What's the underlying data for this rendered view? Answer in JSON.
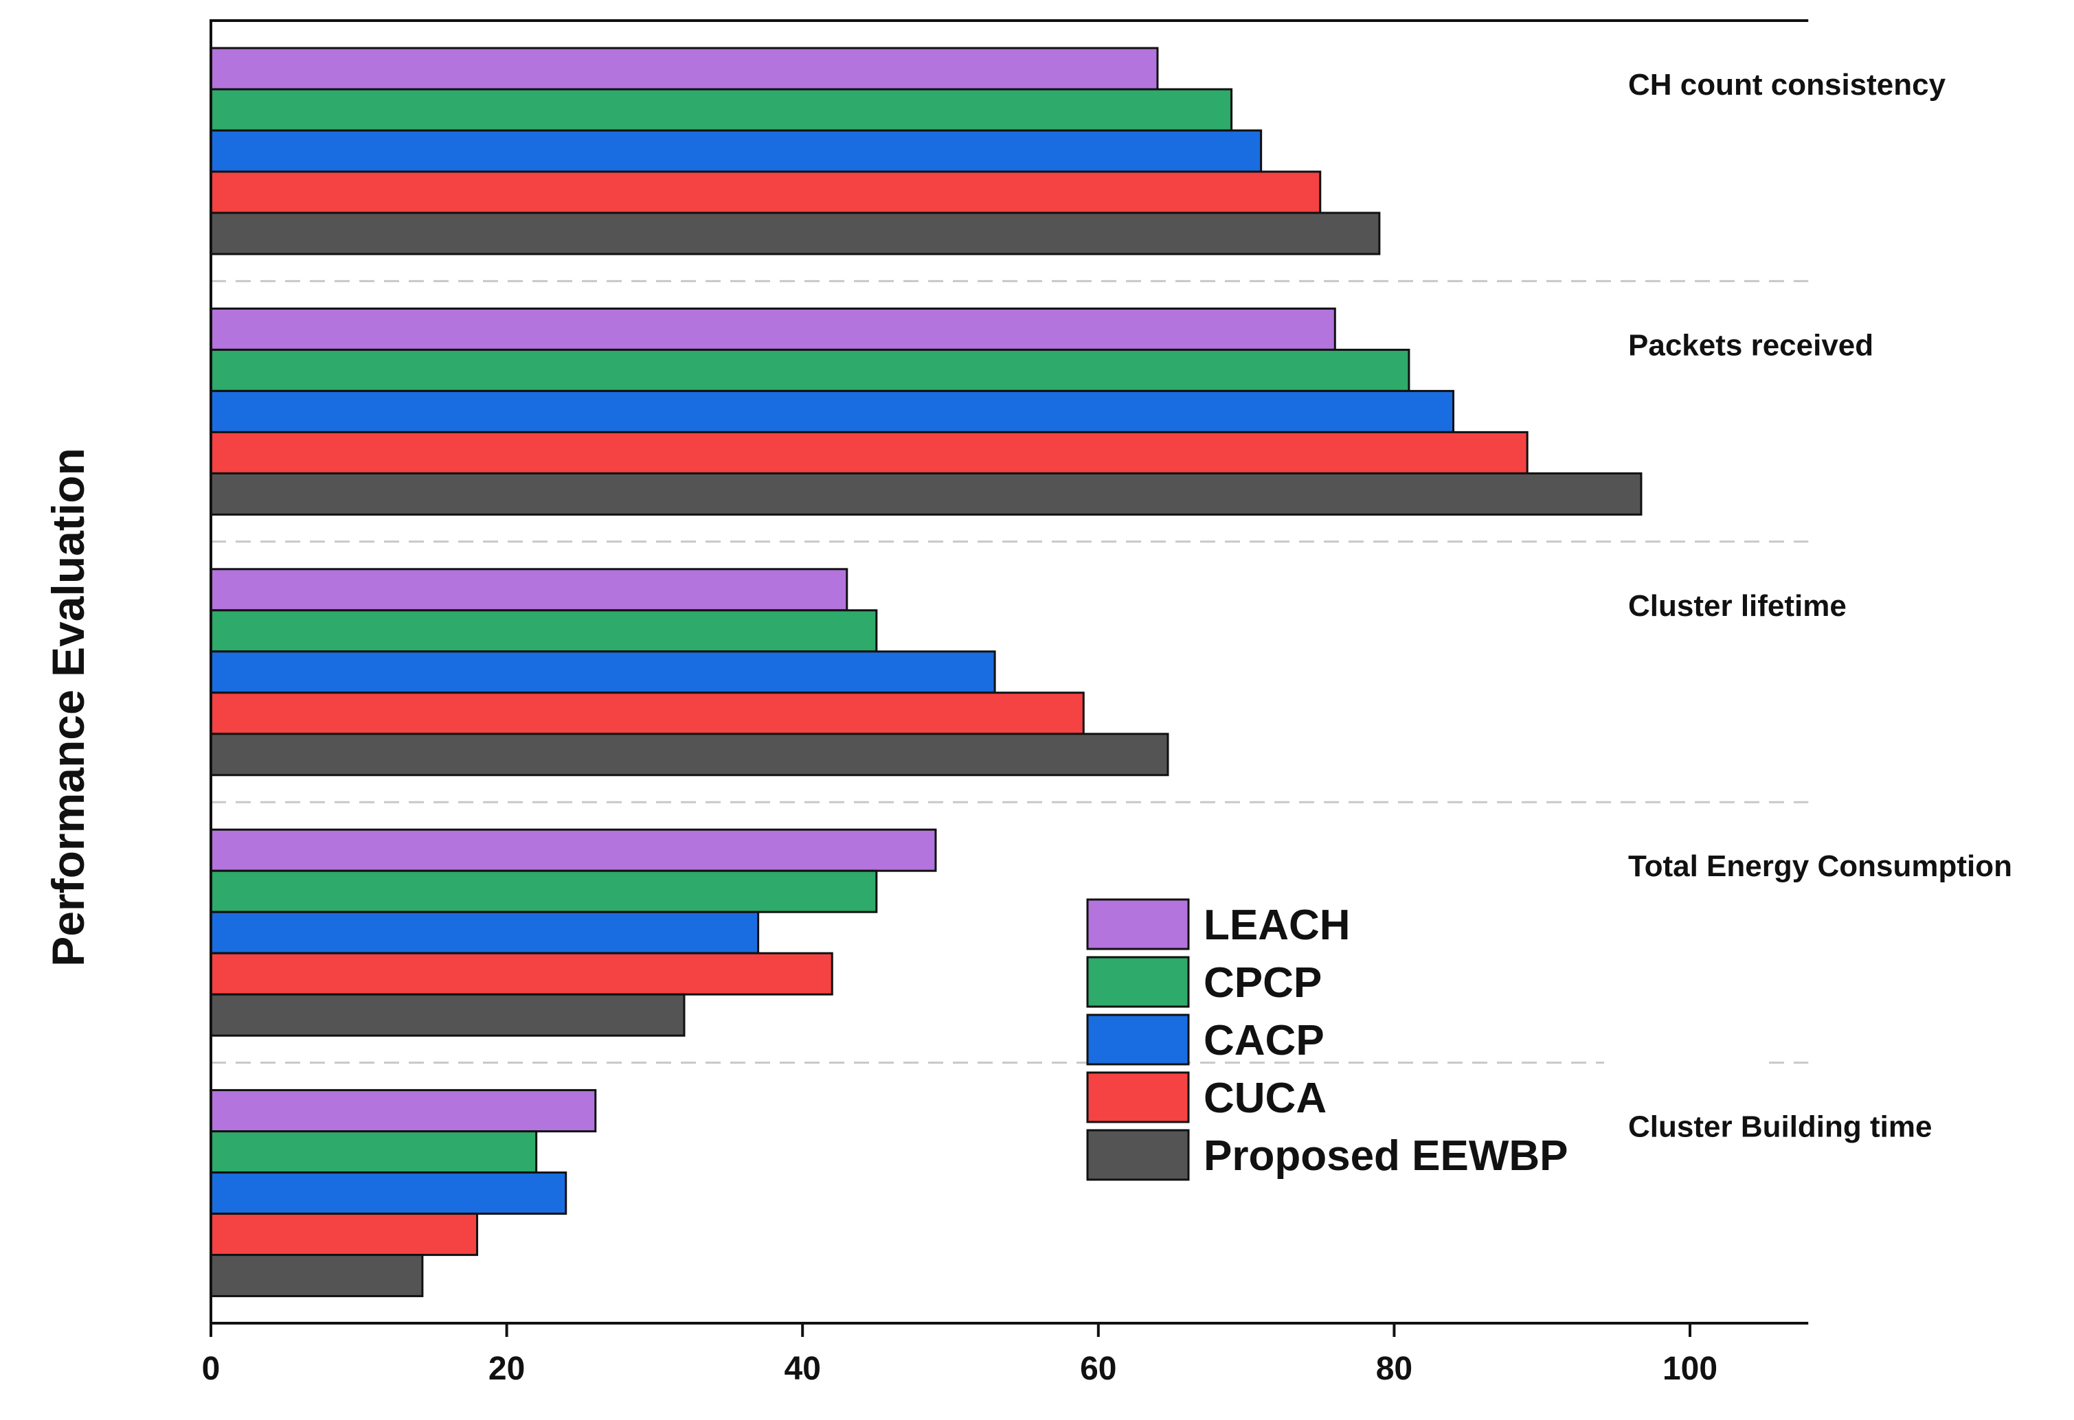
{
  "chart_data": {
    "type": "bar",
    "orientation": "horizontal",
    "ylabel": "Performance Evaluation",
    "xlabel": "",
    "xlim": [
      0,
      108
    ],
    "xticks": [
      0,
      20,
      40,
      60,
      80,
      100
    ],
    "categories": [
      "CH count consistency",
      "Packets received",
      "Cluster lifetime",
      "Total Energy Consumption",
      "Cluster Building time"
    ],
    "series": [
      {
        "name": "LEACH",
        "color": "#b374dd",
        "values": [
          64,
          76,
          43,
          49,
          26
        ]
      },
      {
        "name": "CPCP",
        "color": "#2eaa6a",
        "values": [
          69,
          81,
          45,
          45,
          22
        ]
      },
      {
        "name": "CACP",
        "color": "#1a6de0",
        "values": [
          71,
          84,
          53,
          37,
          24
        ]
      },
      {
        "name": "CUCA",
        "color": "#f54242",
        "values": [
          75,
          89,
          59,
          42,
          18
        ]
      },
      {
        "name": "Proposed EEWBP",
        "color": "#545454",
        "values": [
          79,
          96.7,
          64.7,
          32,
          14.3
        ]
      }
    ],
    "grid": false,
    "group_separators": true,
    "legend_position": "lower-right"
  }
}
